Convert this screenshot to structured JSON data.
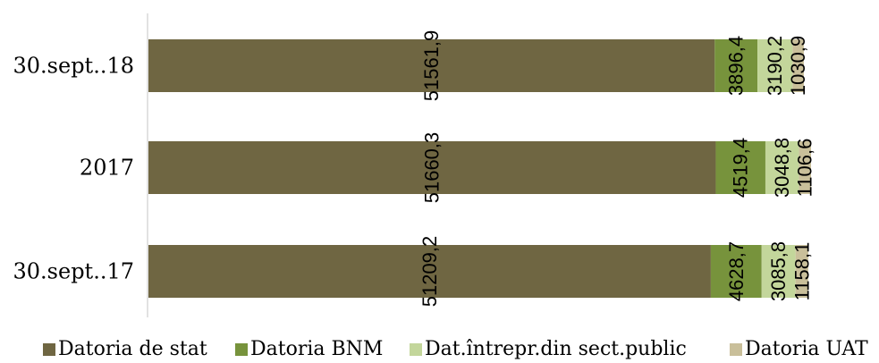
{
  "chart_data": {
    "type": "bar",
    "orientation": "horizontal",
    "stacked": true,
    "categories": [
      "30.sept..18",
      "2017",
      "30.sept..17"
    ],
    "series": [
      {
        "name": "Datoria de stat",
        "color": "#6f6642",
        "values": [
          51561.9,
          51660.3,
          51209.2
        ],
        "labels": [
          "51561,9",
          "51660,3",
          "51209,2"
        ]
      },
      {
        "name": "Datoria BNM",
        "color": "#77933c",
        "values": [
          3896.4,
          4519.4,
          4628.7
        ],
        "labels": [
          "3896,4",
          "4519,4",
          "4628,7"
        ]
      },
      {
        "name": "Dat.întrepr.din sect.public",
        "color": "#c3d69b",
        "values": [
          3190.2,
          3048.8,
          3085.8
        ],
        "labels": [
          "3190,2",
          "3048,8",
          "3085,8"
        ]
      },
      {
        "name": "Datoria UAT",
        "color": "#c9bf9a",
        "values": [
          1030.9,
          1106.6,
          1158.1
        ],
        "labels": [
          "1030,9",
          "1106,6",
          "1158,1"
        ]
      }
    ],
    "grid": false,
    "legend_position": "bottom"
  }
}
